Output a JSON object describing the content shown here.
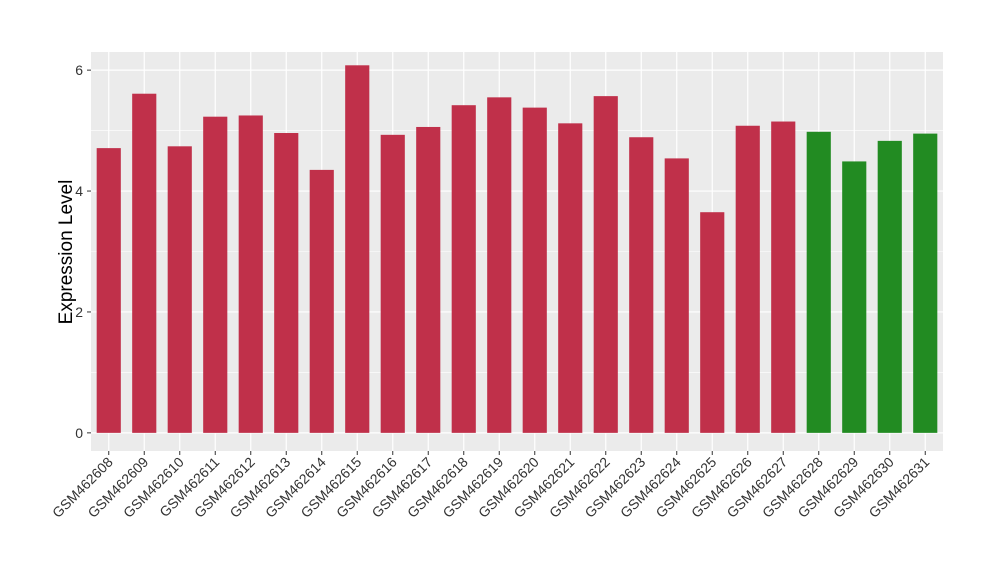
{
  "chart_data": {
    "type": "bar",
    "title": "",
    "xlabel": "",
    "ylabel": "Expression Level",
    "ylim": [
      -0.3,
      6.3
    ],
    "yticks": [
      0,
      2,
      4,
      6
    ],
    "grid": true,
    "legend": "none",
    "categories": [
      "GSM462608",
      "GSM462609",
      "GSM462610",
      "GSM462611",
      "GSM462612",
      "GSM462613",
      "GSM462614",
      "GSM462615",
      "GSM462616",
      "GSM462617",
      "GSM462618",
      "GSM462619",
      "GSM462620",
      "GSM462621",
      "GSM462622",
      "GSM462623",
      "GSM462624",
      "GSM462625",
      "GSM462626",
      "GSM462627",
      "GSM462628",
      "GSM462629",
      "GSM462630",
      "GSM462631"
    ],
    "values": [
      4.71,
      5.61,
      4.74,
      5.23,
      5.25,
      4.96,
      4.35,
      6.08,
      4.93,
      5.06,
      5.42,
      5.55,
      5.38,
      5.12,
      5.57,
      4.89,
      4.54,
      3.65,
      5.08,
      5.15,
      4.98,
      4.49,
      4.83,
      4.95
    ],
    "group_colors": [
      "#c0304a",
      "#c0304a",
      "#c0304a",
      "#c0304a",
      "#c0304a",
      "#c0304a",
      "#c0304a",
      "#c0304a",
      "#c0304a",
      "#c0304a",
      "#c0304a",
      "#c0304a",
      "#c0304a",
      "#c0304a",
      "#c0304a",
      "#c0304a",
      "#c0304a",
      "#c0304a",
      "#c0304a",
      "#c0304a",
      "#228b22",
      "#228b22",
      "#228b22",
      "#228b22"
    ],
    "panel_background": "#ebebeb",
    "gridline_color": "#ffffff"
  }
}
